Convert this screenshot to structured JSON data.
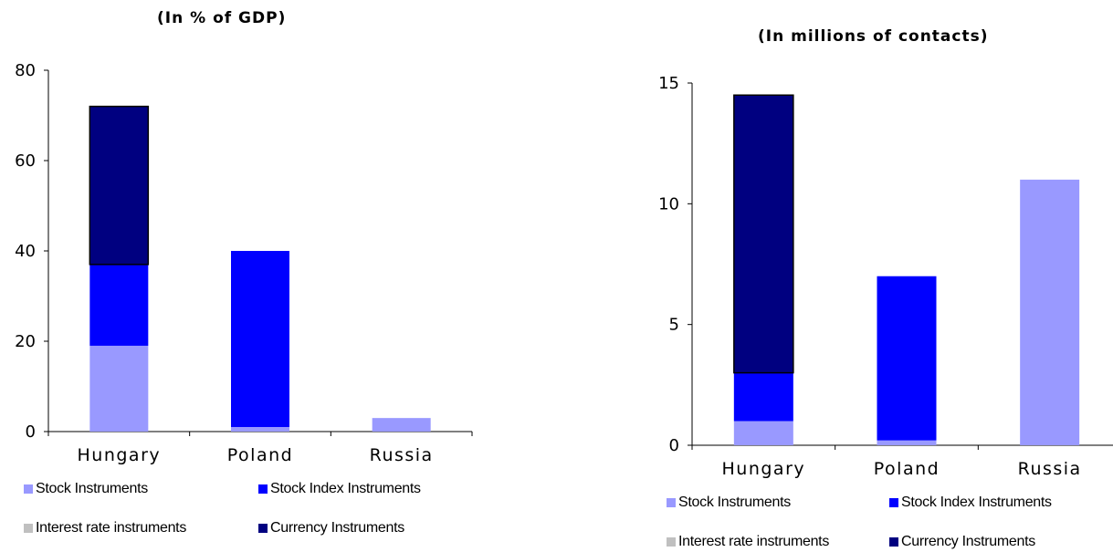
{
  "colors": {
    "stock": "#9999ff",
    "stock_index": "#0000ff",
    "interest_rate": "#c0c0c0",
    "currency": "#000080",
    "axis": "#000000"
  },
  "chart_data": [
    {
      "type": "bar",
      "stacked": true,
      "title": "(In % of GDP)",
      "xlabel": "",
      "ylabel": "",
      "categories": [
        "Hungary",
        "Poland",
        "Russia"
      ],
      "ylim": [
        0,
        80
      ],
      "yticks": [
        "0",
        "20",
        "40",
        "60",
        "80"
      ],
      "grid": false,
      "legend": "bottom",
      "series": [
        {
          "name": "Stock Instruments",
          "color_key": "stock",
          "values": [
            19,
            1,
            3
          ]
        },
        {
          "name": "Stock Index Instruments",
          "color_key": "stock_index",
          "values": [
            18,
            39,
            0
          ]
        },
        {
          "name": "Interest rate instruments",
          "color_key": "interest_rate",
          "values": [
            0,
            0,
            0
          ]
        },
        {
          "name": "Currency Instruments",
          "color_key": "currency",
          "values": [
            35,
            0,
            0
          ]
        }
      ]
    },
    {
      "type": "bar",
      "stacked": true,
      "title": "(In millions of contacts)",
      "xlabel": "",
      "ylabel": "",
      "categories": [
        "Hungary",
        "Poland",
        "Russia"
      ],
      "ylim": [
        0,
        15
      ],
      "yticks": [
        "0",
        "5",
        "10",
        "15"
      ],
      "grid": false,
      "legend": "bottom",
      "series": [
        {
          "name": "Stock Instruments",
          "color_key": "stock",
          "values": [
            1,
            0.2,
            11
          ]
        },
        {
          "name": "Stock Index Instruments",
          "color_key": "stock_index",
          "values": [
            2,
            6.8,
            0
          ]
        },
        {
          "name": "Interest rate instruments",
          "color_key": "interest_rate",
          "values": [
            0,
            0,
            0
          ]
        },
        {
          "name": "Currency Instruments",
          "color_key": "currency",
          "values": [
            11.5,
            0,
            0
          ]
        }
      ]
    }
  ]
}
